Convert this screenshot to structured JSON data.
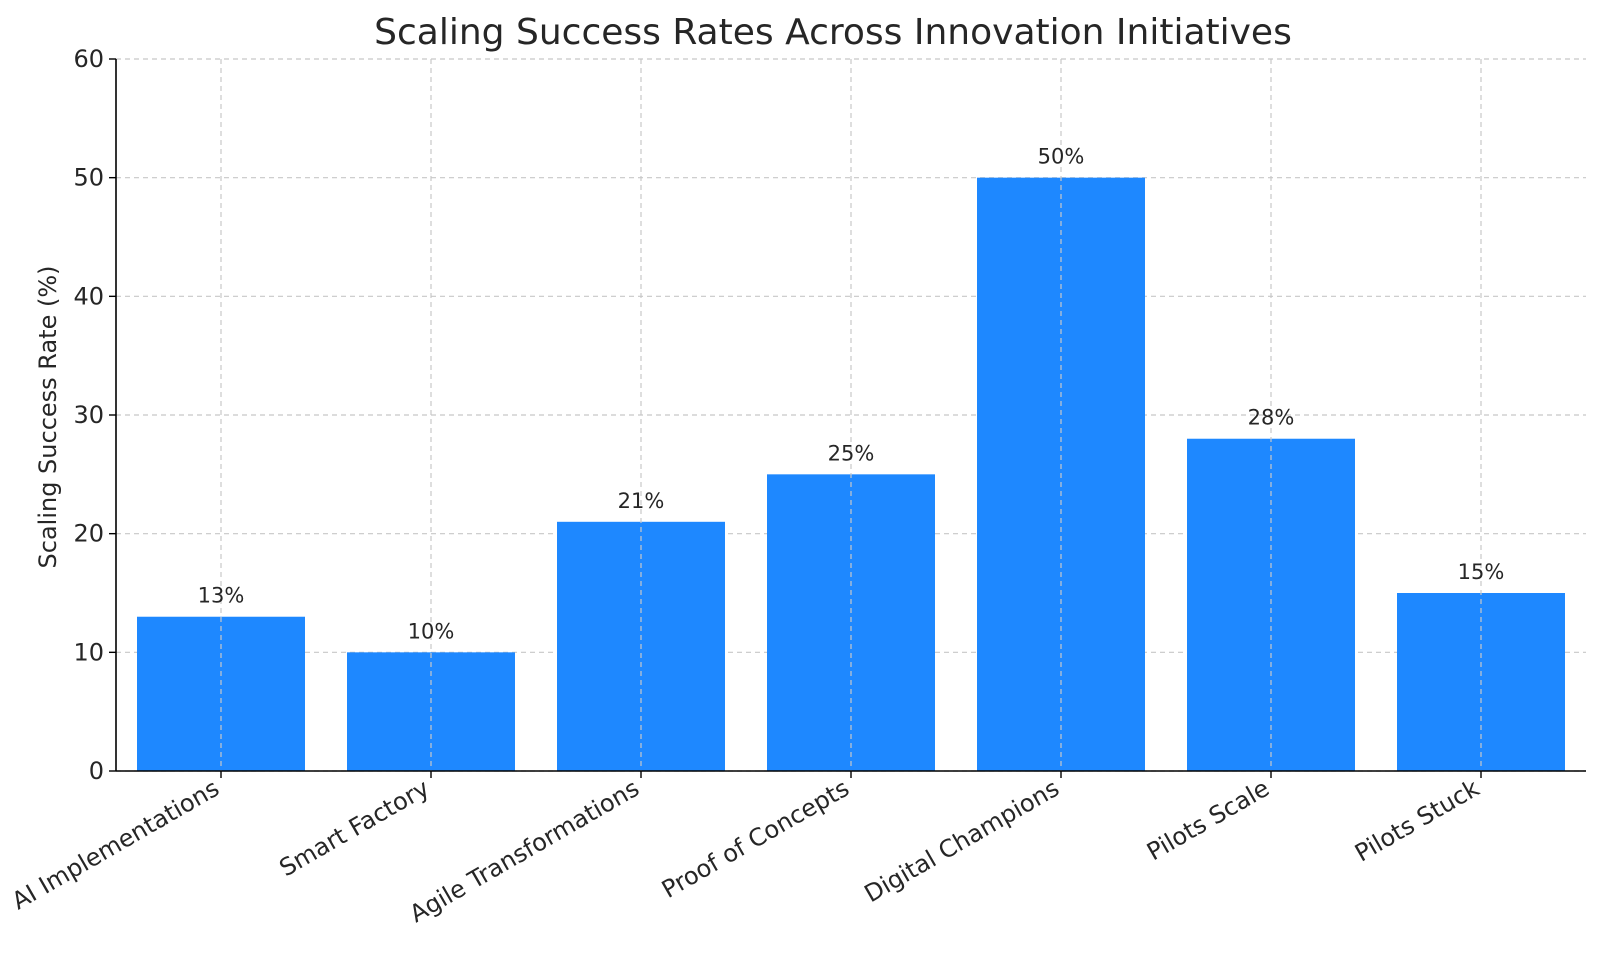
{
  "chart_data": {
    "type": "bar",
    "title": "Scaling Success Rates Across Innovation Initiatives",
    "xlabel": "",
    "ylabel": "Scaling Success Rate (%)",
    "categories": [
      "AI Implementations",
      "Smart Factory",
      "Agile Transformations",
      "Proof of Concepts",
      "Digital Champions",
      "Pilots Scale",
      "Pilots Stuck"
    ],
    "values": [
      13,
      10,
      21,
      25,
      50,
      28,
      15
    ],
    "data_labels": [
      "13%",
      "10%",
      "21%",
      "25%",
      "50%",
      "28%",
      "15%"
    ],
    "ylim": [
      0,
      60
    ],
    "yticks": [
      0,
      10,
      20,
      30,
      40,
      50,
      60
    ],
    "ytick_labels": [
      "0",
      "10",
      "20",
      "30",
      "40",
      "50",
      "60"
    ],
    "grid": true,
    "bar_color": "#1e88ff"
  }
}
